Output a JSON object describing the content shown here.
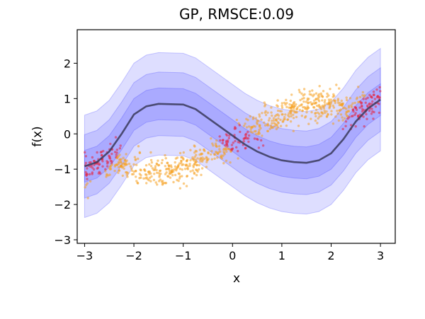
{
  "chart_data": {
    "type": "line",
    "title": "GP, RMSCE:0.09",
    "xlabel": "x",
    "ylabel": "f(x)",
    "xlim": [
      -3.15,
      3.3
    ],
    "ylim": [
      -3.1,
      2.95
    ],
    "xticks": [
      -3,
      -2,
      -1,
      0,
      1,
      2,
      3
    ],
    "xtick_labels": [
      "−3",
      "−2",
      "−1",
      "0",
      "1",
      "2",
      "3"
    ],
    "yticks": [
      -3,
      -2,
      -1,
      0,
      1,
      2
    ],
    "ytick_labels": [
      "−3",
      "−2",
      "−1",
      "0",
      "1",
      "2"
    ],
    "grid": false,
    "legend": "none",
    "colors": {
      "mean_line": "#3a3a5a",
      "band": "#3333ff",
      "points_in": "#e8203a",
      "points_out": "#f5a020"
    },
    "series": [
      {
        "type": "line",
        "x": [
          -3.0,
          -2.75,
          -2.5,
          -2.25,
          -2.0,
          -1.75,
          -1.5,
          -1.25,
          -1.0,
          -0.75,
          -0.5,
          -0.25,
          0.0,
          0.25,
          0.5,
          0.75,
          1.0,
          1.25,
          1.5,
          1.75,
          2.0,
          2.25,
          2.5,
          2.75,
          3.0
        ],
        "y": [
          -0.92,
          -0.8,
          -0.5,
          0.0,
          0.55,
          0.78,
          0.85,
          0.84,
          0.83,
          0.7,
          0.45,
          0.2,
          -0.05,
          -0.3,
          -0.5,
          -0.65,
          -0.75,
          -0.8,
          -0.82,
          -0.75,
          -0.55,
          -0.15,
          0.35,
          0.72,
          0.97
        ]
      },
      {
        "type": "band",
        "x": [
          -3.0,
          -2.75,
          -2.5,
          -2.25,
          -2.0,
          -1.75,
          -1.5,
          -1.25,
          -1.0,
          -0.75,
          -0.5,
          -0.25,
          0.0,
          0.25,
          0.5,
          0.75,
          1.0,
          1.25,
          1.5,
          1.75,
          2.0,
          2.25,
          2.5,
          2.75,
          3.0
        ],
        "half_widths": [
          0.45,
          0.9,
          1.45
        ]
      },
      {
        "type": "scatter",
        "x_range": [
          -3.0,
          3.0
        ],
        "count": 900
      }
    ]
  }
}
